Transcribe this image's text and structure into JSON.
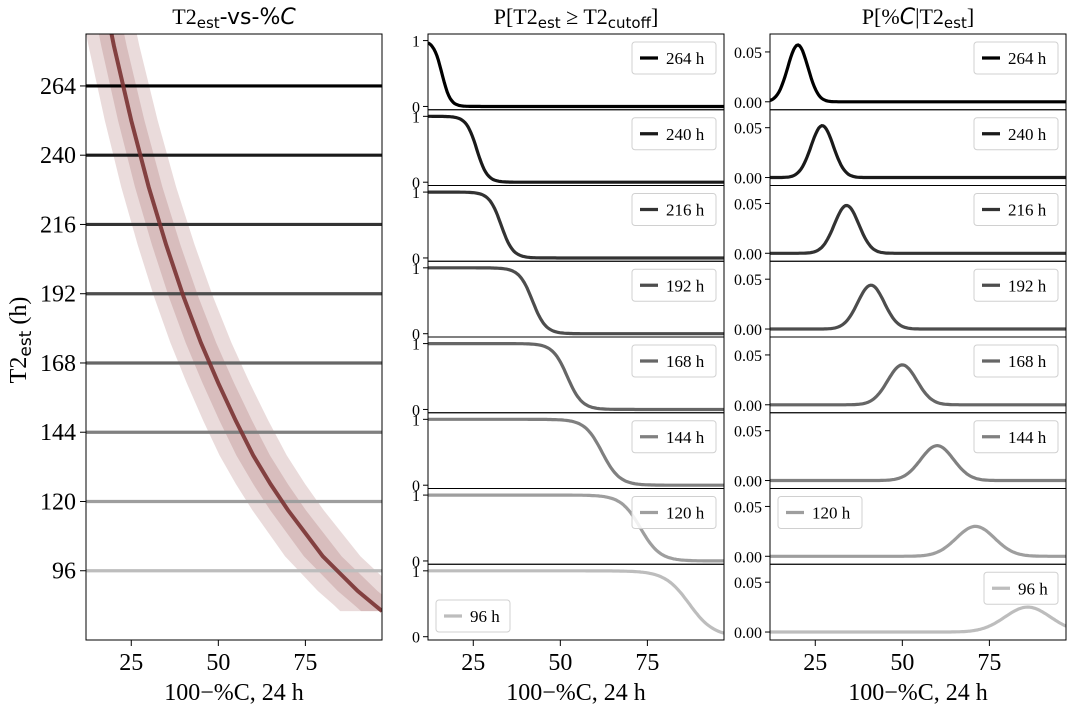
{
  "figure": {
    "xlabel": "100−%C, 24 h",
    "subscripts": {
      "est": "est",
      "cutoff": "cutoff"
    }
  },
  "panels": {
    "left": {
      "title": "T2est-vs-%C",
      "ylabel": "T2est (h)",
      "ytick_labels": [
        "264",
        "240",
        "216",
        "192",
        "168",
        "144",
        "120",
        "96"
      ],
      "xtick_labels": [
        "25",
        "50",
        "75"
      ]
    },
    "middle": {
      "title": "P[T2est ≥ T2cutoff]",
      "ytick_labels": [
        "1",
        "0"
      ],
      "xtick_labels": [
        "25",
        "50",
        "75"
      ]
    },
    "right": {
      "title": "P[%C|T2est]",
      "ytick_labels": [
        "0.05",
        "0.00"
      ],
      "xtick_labels": [
        "25",
        "50",
        "75"
      ]
    }
  },
  "chart_data": [
    {
      "type": "line",
      "title": "T2est-vs-%C",
      "xlabel": "100−%C, 24 h",
      "ylabel": "T2est (h)",
      "xlim": [
        12,
        97
      ],
      "ylim": [
        72,
        282
      ],
      "band_color": "#8b3a3a",
      "curve": {
        "x": [
          15,
          20,
          25,
          30,
          35,
          40,
          45,
          50,
          55,
          60,
          65,
          70,
          75,
          80,
          85,
          90,
          95,
          97
        ],
        "y": [
          308,
          278,
          252,
          229,
          209,
          191,
          175,
          161,
          148,
          136,
          126,
          117,
          109,
          101,
          95,
          89,
          84,
          82
        ],
        "inner_band_halfwidth": [
          3.5,
          6
        ],
        "outer_band_halfwidth": [
          7,
          12
        ]
      },
      "reference_lines": [
        {
          "y": 264,
          "color": "#000000"
        },
        {
          "y": 240,
          "color": "#1a1a1a"
        },
        {
          "y": 216,
          "color": "#333333"
        },
        {
          "y": 192,
          "color": "#4d4d4d"
        },
        {
          "y": 168,
          "color": "#666666"
        },
        {
          "y": 144,
          "color": "#808080"
        },
        {
          "y": 120,
          "color": "#9e9e9e"
        },
        {
          "y": 96,
          "color": "#bdbdbd"
        }
      ]
    },
    {
      "type": "line",
      "title": "P[T2est ≥ T2cutoff]",
      "xlabel": "100−%C, 24 h",
      "xlim": [
        12,
        97
      ],
      "ylim": [
        -0.05,
        1.1
      ],
      "series": [
        {
          "name": "264 h",
          "color": "#000000",
          "midpoint": 16,
          "width": 1.2,
          "legend": "top-right"
        },
        {
          "name": "240 h",
          "color": "#1a1a1a",
          "midpoint": 26,
          "width": 1.5,
          "legend": "top-right"
        },
        {
          "name": "216 h",
          "color": "#333333",
          "midpoint": 33,
          "width": 1.7,
          "legend": "top-right"
        },
        {
          "name": "192 h",
          "color": "#4d4d4d",
          "midpoint": 42,
          "width": 1.9,
          "legend": "top-right"
        },
        {
          "name": "168 h",
          "color": "#666666",
          "midpoint": 52,
          "width": 2.1,
          "legend": "top-right"
        },
        {
          "name": "144 h",
          "color": "#808080",
          "midpoint": 62,
          "width": 2.5,
          "legend": "top-right"
        },
        {
          "name": "120 h",
          "color": "#9e9e9e",
          "midpoint": 73,
          "width": 2.8,
          "legend": "top-right"
        },
        {
          "name": "96 h",
          "color": "#bdbdbd",
          "midpoint": 87,
          "width": 3.5,
          "legend": "bottom-left"
        }
      ]
    },
    {
      "type": "line",
      "title": "P[%C|T2est]",
      "xlabel": "100−%C, 24 h",
      "xlim": [
        12,
        97
      ],
      "ylim": [
        -0.008,
        0.068
      ],
      "series": [
        {
          "name": "264 h",
          "color": "#000000",
          "mean": 20,
          "sd": 2.9,
          "peak": 0.057,
          "legend": "top-right"
        },
        {
          "name": "240 h",
          "color": "#1a1a1a",
          "mean": 27,
          "sd": 3.2,
          "peak": 0.052,
          "legend": "top-right"
        },
        {
          "name": "216 h",
          "color": "#333333",
          "mean": 34,
          "sd": 3.5,
          "peak": 0.048,
          "legend": "top-right"
        },
        {
          "name": "192 h",
          "color": "#4d4d4d",
          "mean": 41,
          "sd": 3.8,
          "peak": 0.044,
          "legend": "top-right"
        },
        {
          "name": "168 h",
          "color": "#666666",
          "mean": 50,
          "sd": 4.2,
          "peak": 0.04,
          "legend": "top-right"
        },
        {
          "name": "144 h",
          "color": "#808080",
          "mean": 60,
          "sd": 4.7,
          "peak": 0.035,
          "legend": "top-right"
        },
        {
          "name": "120 h",
          "color": "#9e9e9e",
          "mean": 71,
          "sd": 5.5,
          "peak": 0.03,
          "legend": "top-left"
        },
        {
          "name": "96 h",
          "color": "#bdbdbd",
          "mean": 86,
          "sd": 6.5,
          "peak": 0.025,
          "legend": "top-right"
        }
      ]
    }
  ]
}
